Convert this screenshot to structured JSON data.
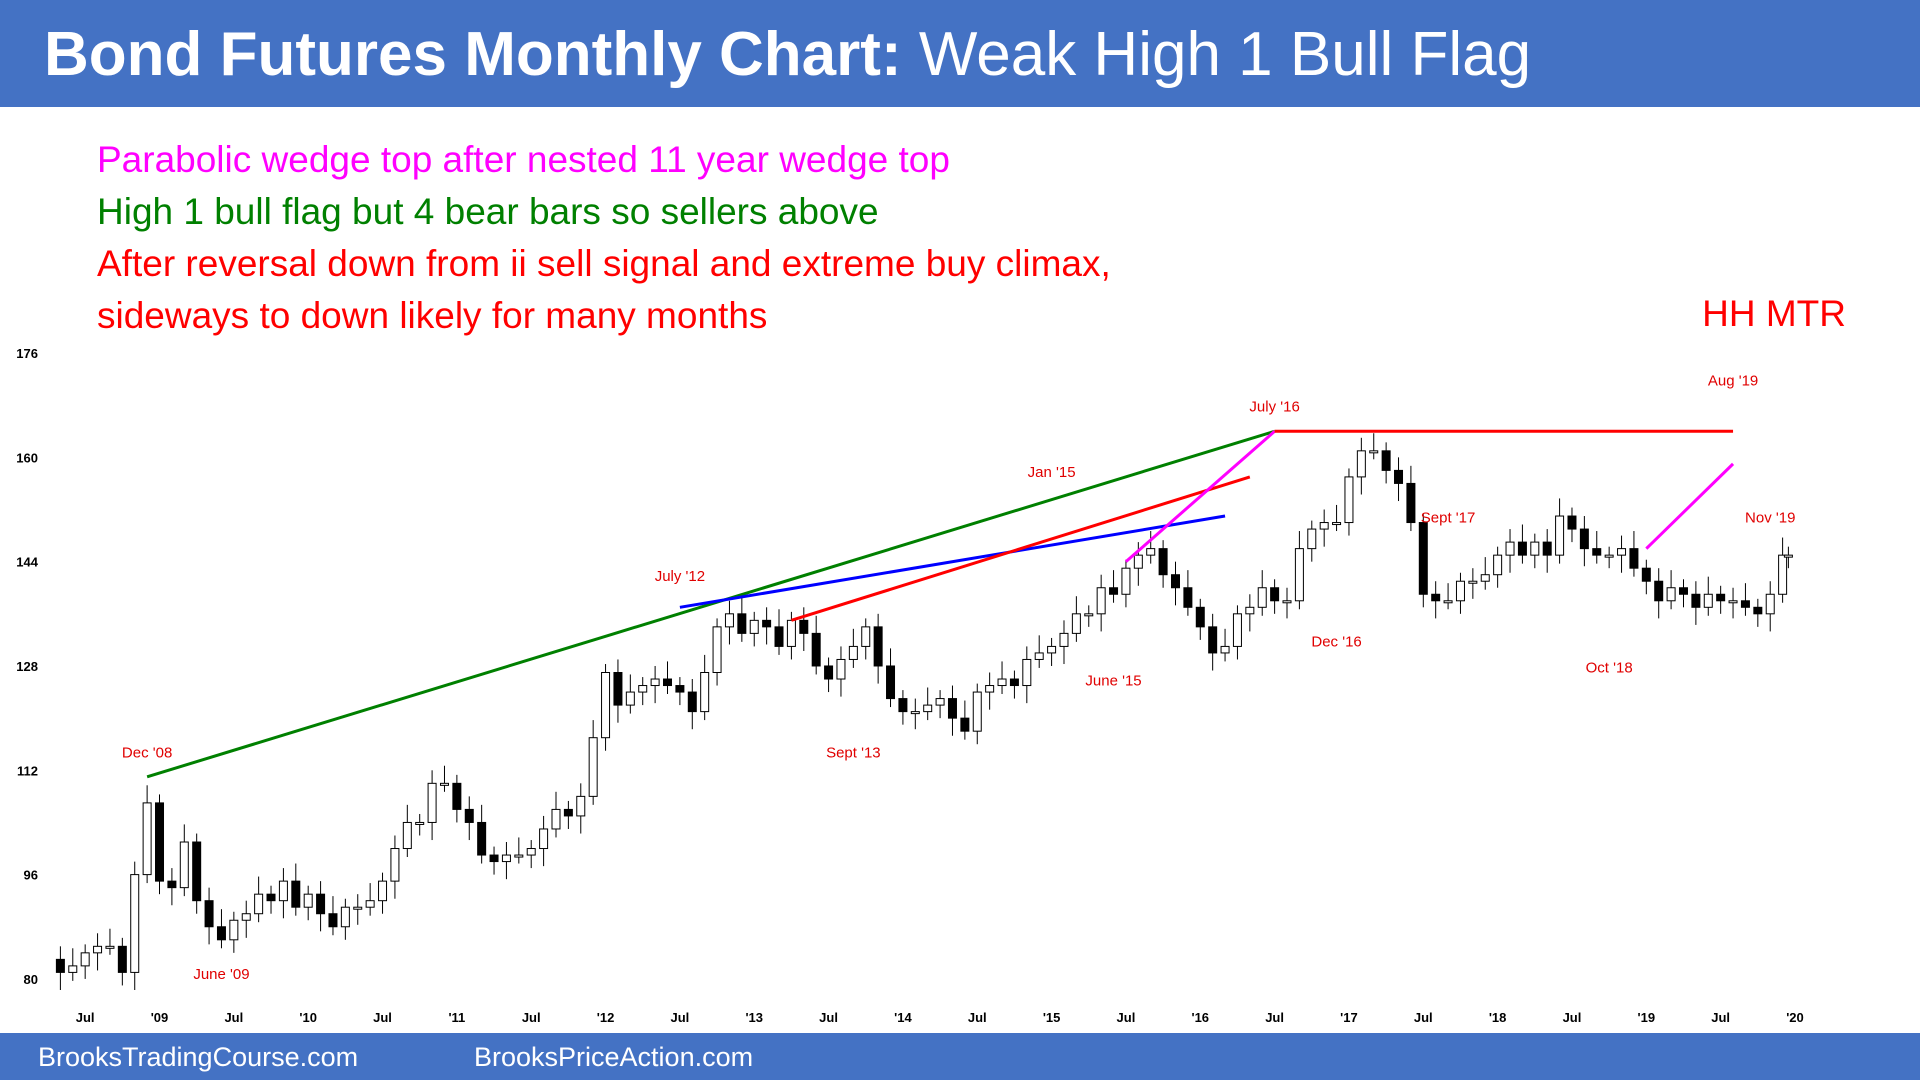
{
  "header": {
    "title_bold": "Bond Futures Monthly Chart:",
    "title_rest": "Weak High 1 Bull Flag"
  },
  "notes": [
    {
      "text": "Parabolic wedge top after nested 11 year wedge top",
      "color": "#ff00ff"
    },
    {
      "text": "High 1 bull flag but 4 bear bars so sellers above",
      "color": "#008000"
    },
    {
      "text": "After reversal down from ii sell signal and extreme buy climax,",
      "color": "#ff0000"
    },
    {
      "text": "sideways to down likely for many months",
      "color": "#ff0000"
    }
  ],
  "annotation_right": "HH MTR",
  "footer": {
    "left": "BrooksTradingCourse.com",
    "right": "BrooksPriceAction.com"
  },
  "chart_data": {
    "type": "candlestick",
    "ylim": [
      76,
      178
    ],
    "y_ticks": [
      80,
      96,
      112,
      128,
      144,
      160,
      176
    ],
    "x_start": "2008-04",
    "x_end": "2020-01",
    "x_ticks": [
      {
        "label": "Jul",
        "date": "2008-07"
      },
      {
        "label": "'09",
        "date": "2009-01"
      },
      {
        "label": "Jul",
        "date": "2009-07"
      },
      {
        "label": "'10",
        "date": "2010-01"
      },
      {
        "label": "Jul",
        "date": "2010-07"
      },
      {
        "label": "'11",
        "date": "2011-01"
      },
      {
        "label": "Jul",
        "date": "2011-07"
      },
      {
        "label": "'12",
        "date": "2012-01"
      },
      {
        "label": "Jul",
        "date": "2012-07"
      },
      {
        "label": "'13",
        "date": "2013-01"
      },
      {
        "label": "Jul",
        "date": "2013-07"
      },
      {
        "label": "'14",
        "date": "2014-01"
      },
      {
        "label": "Jul",
        "date": "2014-07"
      },
      {
        "label": "'15",
        "date": "2015-01"
      },
      {
        "label": "Jul",
        "date": "2015-07"
      },
      {
        "label": "'16",
        "date": "2016-01"
      },
      {
        "label": "Jul",
        "date": "2016-07"
      },
      {
        "label": "'17",
        "date": "2017-01"
      },
      {
        "label": "Jul",
        "date": "2017-07"
      },
      {
        "label": "'18",
        "date": "2018-01"
      },
      {
        "label": "Jul",
        "date": "2018-07"
      },
      {
        "label": "'19",
        "date": "2019-01"
      },
      {
        "label": "Jul",
        "date": "2019-07"
      },
      {
        "label": "'20",
        "date": "2020-01"
      }
    ],
    "closes": [
      {
        "date": "2008-04",
        "value": 83
      },
      {
        "date": "2008-05",
        "value": 81
      },
      {
        "date": "2008-06",
        "value": 82
      },
      {
        "date": "2008-07",
        "value": 84
      },
      {
        "date": "2008-08",
        "value": 85
      },
      {
        "date": "2008-09",
        "value": 85
      },
      {
        "date": "2008-10",
        "value": 81
      },
      {
        "date": "2008-11",
        "value": 96
      },
      {
        "date": "2008-12",
        "value": 107
      },
      {
        "date": "2009-01",
        "value": 95
      },
      {
        "date": "2009-02",
        "value": 94
      },
      {
        "date": "2009-03",
        "value": 101
      },
      {
        "date": "2009-04",
        "value": 92
      },
      {
        "date": "2009-05",
        "value": 88
      },
      {
        "date": "2009-06",
        "value": 86
      },
      {
        "date": "2009-07",
        "value": 89
      },
      {
        "date": "2009-08",
        "value": 90
      },
      {
        "date": "2009-09",
        "value": 93
      },
      {
        "date": "2009-10",
        "value": 92
      },
      {
        "date": "2009-11",
        "value": 95
      },
      {
        "date": "2009-12",
        "value": 91
      },
      {
        "date": "2010-01",
        "value": 93
      },
      {
        "date": "2010-02",
        "value": 90
      },
      {
        "date": "2010-03",
        "value": 88
      },
      {
        "date": "2010-04",
        "value": 91
      },
      {
        "date": "2010-05",
        "value": 91
      },
      {
        "date": "2010-06",
        "value": 92
      },
      {
        "date": "2010-07",
        "value": 95
      },
      {
        "date": "2010-08",
        "value": 100
      },
      {
        "date": "2010-09",
        "value": 104
      },
      {
        "date": "2010-10",
        "value": 104
      },
      {
        "date": "2010-11",
        "value": 110
      },
      {
        "date": "2010-12",
        "value": 110
      },
      {
        "date": "2011-01",
        "value": 106
      },
      {
        "date": "2011-02",
        "value": 104
      },
      {
        "date": "2011-03",
        "value": 99
      },
      {
        "date": "2011-04",
        "value": 98
      },
      {
        "date": "2011-05",
        "value": 99
      },
      {
        "date": "2011-06",
        "value": 99
      },
      {
        "date": "2011-07",
        "value": 100
      },
      {
        "date": "2011-08",
        "value": 103
      },
      {
        "date": "2011-09",
        "value": 106
      },
      {
        "date": "2011-10",
        "value": 105
      },
      {
        "date": "2011-11",
        "value": 108
      },
      {
        "date": "2011-12",
        "value": 117
      },
      {
        "date": "2012-01",
        "value": 127
      },
      {
        "date": "2012-02",
        "value": 122
      },
      {
        "date": "2012-03",
        "value": 124
      },
      {
        "date": "2012-04",
        "value": 125
      },
      {
        "date": "2012-05",
        "value": 126
      },
      {
        "date": "2012-06",
        "value": 125
      },
      {
        "date": "2012-07",
        "value": 124
      },
      {
        "date": "2012-08",
        "value": 121
      },
      {
        "date": "2012-09",
        "value": 127
      },
      {
        "date": "2012-10",
        "value": 134
      },
      {
        "date": "2012-11",
        "value": 136
      },
      {
        "date": "2012-12",
        "value": 133
      },
      {
        "date": "2013-01",
        "value": 135
      },
      {
        "date": "2013-02",
        "value": 134
      },
      {
        "date": "2013-03",
        "value": 131
      },
      {
        "date": "2013-04",
        "value": 135
      },
      {
        "date": "2013-05",
        "value": 133
      },
      {
        "date": "2013-06",
        "value": 128
      },
      {
        "date": "2013-07",
        "value": 126
      },
      {
        "date": "2013-08",
        "value": 129
      },
      {
        "date": "2013-09",
        "value": 131
      },
      {
        "date": "2013-10",
        "value": 134
      },
      {
        "date": "2013-11",
        "value": 128
      },
      {
        "date": "2013-12",
        "value": 123
      },
      {
        "date": "2014-01",
        "value": 121
      },
      {
        "date": "2014-02",
        "value": 121
      },
      {
        "date": "2014-03",
        "value": 122
      },
      {
        "date": "2014-04",
        "value": 123
      },
      {
        "date": "2014-05",
        "value": 120
      },
      {
        "date": "2014-06",
        "value": 118
      },
      {
        "date": "2014-07",
        "value": 124
      },
      {
        "date": "2014-08",
        "value": 125
      },
      {
        "date": "2014-09",
        "value": 126
      },
      {
        "date": "2014-10",
        "value": 125
      },
      {
        "date": "2014-11",
        "value": 129
      },
      {
        "date": "2014-12",
        "value": 130
      },
      {
        "date": "2015-01",
        "value": 131
      },
      {
        "date": "2015-02",
        "value": 133
      },
      {
        "date": "2015-03",
        "value": 136
      },
      {
        "date": "2015-04",
        "value": 136
      },
      {
        "date": "2015-05",
        "value": 140
      },
      {
        "date": "2015-06",
        "value": 139
      },
      {
        "date": "2015-07",
        "value": 143
      },
      {
        "date": "2015-08",
        "value": 145
      },
      {
        "date": "2015-09",
        "value": 146
      },
      {
        "date": "2015-10",
        "value": 142
      },
      {
        "date": "2015-11",
        "value": 140
      },
      {
        "date": "2015-12",
        "value": 137
      },
      {
        "date": "2016-01",
        "value": 134
      },
      {
        "date": "2016-02",
        "value": 130
      },
      {
        "date": "2016-03",
        "value": 131
      },
      {
        "date": "2016-04",
        "value": 136
      },
      {
        "date": "2016-05",
        "value": 137
      },
      {
        "date": "2016-06",
        "value": 140
      },
      {
        "date": "2016-07",
        "value": 138
      },
      {
        "date": "2016-08",
        "value": 138
      },
      {
        "date": "2016-09",
        "value": 146
      },
      {
        "date": "2016-10",
        "value": 149
      },
      {
        "date": "2016-11",
        "value": 150
      },
      {
        "date": "2016-12",
        "value": 150
      },
      {
        "date": "2017-01",
        "value": 157
      },
      {
        "date": "2017-02",
        "value": 161
      },
      {
        "date": "2017-03",
        "value": 161
      },
      {
        "date": "2017-04",
        "value": 158
      },
      {
        "date": "2017-05",
        "value": 156
      },
      {
        "date": "2017-06",
        "value": 150
      },
      {
        "date": "2017-07",
        "value": 139
      },
      {
        "date": "2017-08",
        "value": 138
      },
      {
        "date": "2017-09",
        "value": 138
      },
      {
        "date": "2017-10",
        "value": 141
      },
      {
        "date": "2017-11",
        "value": 141
      },
      {
        "date": "2017-12",
        "value": 142
      },
      {
        "date": "2018-01",
        "value": 145
      },
      {
        "date": "2018-02",
        "value": 147
      },
      {
        "date": "2018-03",
        "value": 145
      },
      {
        "date": "2018-04",
        "value": 147
      },
      {
        "date": "2018-05",
        "value": 145
      },
      {
        "date": "2018-06",
        "value": 151
      },
      {
        "date": "2018-07",
        "value": 149
      },
      {
        "date": "2018-08",
        "value": 146
      },
      {
        "date": "2018-09",
        "value": 145
      },
      {
        "date": "2018-10",
        "value": 145
      },
      {
        "date": "2018-11",
        "value": 146
      },
      {
        "date": "2018-12",
        "value": 143
      },
      {
        "date": "2019-01",
        "value": 141
      },
      {
        "date": "2019-02",
        "value": 138
      },
      {
        "date": "2019-03",
        "value": 140
      },
      {
        "date": "2019-04",
        "value": 139
      },
      {
        "date": "2019-05",
        "value": 137
      },
      {
        "date": "2019-06",
        "value": 139
      },
      {
        "date": "2019-07",
        "value": 138
      },
      {
        "date": "2019-08",
        "value": 138
      },
      {
        "date": "2019-09",
        "value": 137
      },
      {
        "date": "2019-10",
        "value": 136
      },
      {
        "date": "2019-11",
        "value": 139
      },
      {
        "date": "2019-12",
        "value": 145
      },
      {
        "date": "2019-12-15",
        "value": 145
      }
    ],
    "lines": [
      {
        "color": "#008000",
        "from": {
          "date": "2008-12",
          "value": 111
        },
        "to": {
          "date": "2016-07",
          "value": 164
        }
      },
      {
        "color": "#0000ff",
        "from": {
          "date": "2012-07",
          "value": 137
        },
        "to": {
          "date": "2016-03",
          "value": 151
        }
      },
      {
        "color": "#ff0000",
        "from": {
          "date": "2013-04",
          "value": 135
        },
        "to": {
          "date": "2016-05",
          "value": 157
        }
      },
      {
        "color": "#ff00ff",
        "from": {
          "date": "2015-07",
          "value": 144
        },
        "to": {
          "date": "2016-07",
          "value": 164
        }
      },
      {
        "color": "#ff0000",
        "from": {
          "date": "2016-07",
          "value": 164
        },
        "to": {
          "date": "2019-08",
          "value": 164
        }
      },
      {
        "color": "#ff00ff",
        "from": {
          "date": "2019-01",
          "value": 146
        },
        "to": {
          "date": "2019-08",
          "value": 159
        }
      }
    ],
    "labels": [
      {
        "text": "Dec '08",
        "date": "2008-12",
        "value": 114
      },
      {
        "text": "June '09",
        "date": "2009-06",
        "value": 80
      },
      {
        "text": "July '12",
        "date": "2012-07",
        "value": 141
      },
      {
        "text": "Sept '13",
        "date": "2013-09",
        "value": 114
      },
      {
        "text": "Jan '15",
        "date": "2015-01",
        "value": 157
      },
      {
        "text": "June '15",
        "date": "2015-06",
        "value": 125
      },
      {
        "text": "July '16",
        "date": "2016-07",
        "value": 167
      },
      {
        "text": "Dec '16",
        "date": "2016-12",
        "value": 131
      },
      {
        "text": "Sept '17",
        "date": "2017-09",
        "value": 150
      },
      {
        "text": "Oct '18",
        "date": "2018-10",
        "value": 127
      },
      {
        "text": "Aug '19",
        "date": "2019-08",
        "value": 171
      },
      {
        "text": "Nov '19",
        "date": "2019-11",
        "value": 150
      }
    ]
  }
}
